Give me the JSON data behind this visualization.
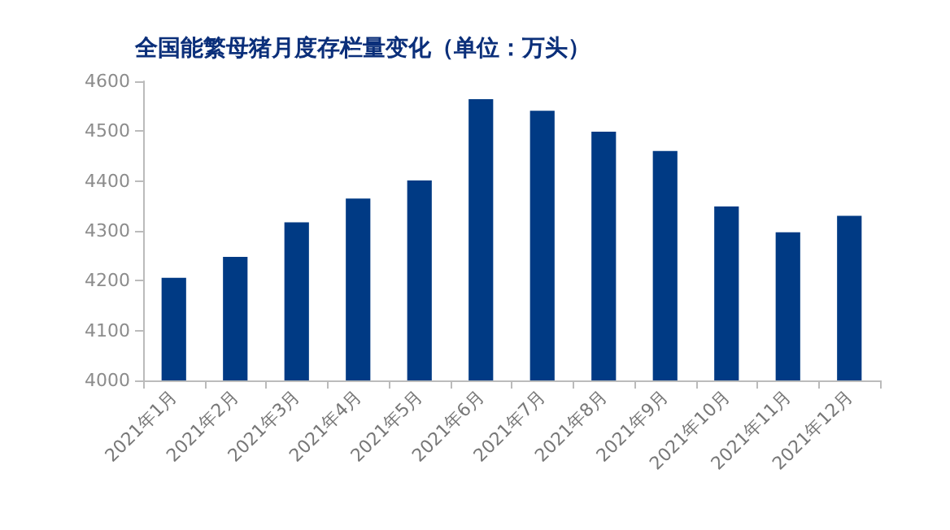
{
  "chart_data": {
    "type": "bar",
    "title": "全国能繁母猪月度存栏量变化（单位：万头）",
    "categories": [
      "2021年1月",
      "2021年2月",
      "2021年3月",
      "2021年4月",
      "2021年5月",
      "2021年6月",
      "2021年7月",
      "2021年8月",
      "2021年9月",
      "2021年10月",
      "2021年11月",
      "2021年12月"
    ],
    "values": [
      4206,
      4248,
      4317,
      4365,
      4401,
      4564,
      4541,
      4499,
      4460,
      4349,
      4297,
      4330
    ],
    "color": "#003a84",
    "ylim": [
      4000,
      4600
    ],
    "yticks": [
      4000,
      4100,
      4200,
      4300,
      4400,
      4500,
      4600
    ],
    "grid": false
  }
}
